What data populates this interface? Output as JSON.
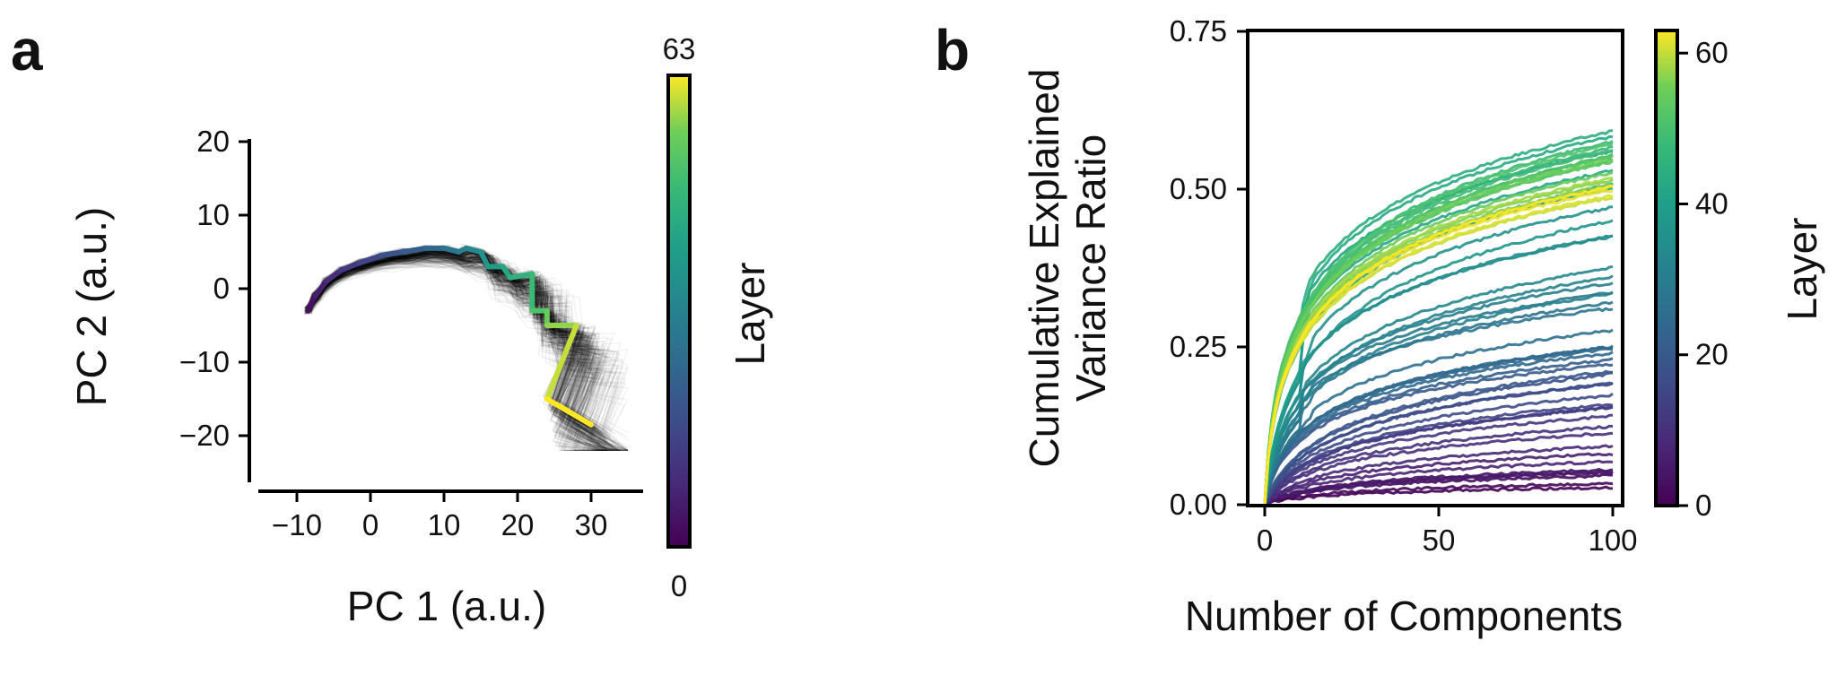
{
  "figure": {
    "panels": [
      {
        "label": "a"
      },
      {
        "label": "b"
      }
    ]
  },
  "chart_data": [
    {
      "panel": "a",
      "type": "line",
      "xlabel": "PC 1 (a.u.)",
      "ylabel": "PC 2 (a.u.)",
      "xlim": [
        -15,
        36
      ],
      "ylim": [
        -25.5,
        20
      ],
      "xticks": [
        -10,
        0,
        10,
        20,
        30
      ],
      "yticks": [
        -20,
        -10,
        0,
        10,
        20
      ],
      "grid": false,
      "background_trajectories": "many thin black semi-transparent trajectories",
      "highlighted_trajectory": {
        "x": [
          -8.5,
          -7.5,
          -6,
          -4,
          -1.5,
          1.5,
          4.5,
          7.5,
          10,
          12,
          13,
          15,
          16,
          18,
          19,
          22,
          22,
          24,
          24,
          28,
          24,
          30
        ],
        "y": [
          -3,
          -1,
          1,
          2.5,
          3.5,
          4.5,
          5,
          5.5,
          5.5,
          5,
          5.5,
          5,
          3,
          3,
          1.5,
          2,
          -3,
          -3,
          -5,
          -5,
          -15,
          -18.5
        ],
        "layer": [
          0,
          3,
          6,
          9,
          12,
          15,
          18,
          21,
          24,
          27,
          30,
          33,
          36,
          39,
          42,
          45,
          48,
          51,
          54,
          57,
          60,
          63
        ]
      },
      "colorbar": {
        "label": "Layer",
        "min_label": "0",
        "max_label": "63",
        "min": 0,
        "max": 63
      }
    },
    {
      "panel": "b",
      "type": "line",
      "xlabel": "Number of Components",
      "ylabel": "Cumulative Explained\nVariance Ratio",
      "xlim": [
        -5,
        103
      ],
      "ylim": [
        0,
        0.75
      ],
      "xticks": [
        0,
        50,
        100
      ],
      "yticks": [
        "0.00",
        "0.25",
        "0.50",
        "0.75"
      ],
      "grid": false,
      "series_description": "one cumulative curve per layer (0-63), x from 0 to 100 components",
      "series_final_values_by_layer": {
        "layers": [
          0,
          3,
          6,
          9,
          12,
          15,
          18,
          21,
          24,
          27,
          30,
          33,
          36,
          39,
          42,
          45,
          48,
          51,
          54,
          57,
          60,
          63
        ],
        "final_values": [
          0.03,
          0.05,
          0.07,
          0.1,
          0.14,
          0.18,
          0.2,
          0.23,
          0.25,
          0.27,
          0.32,
          0.36,
          0.42,
          0.47,
          0.52,
          0.55,
          0.57,
          0.56,
          0.54,
          0.52,
          0.5,
          0.49
        ]
      },
      "colorbar": {
        "label": "Layer",
        "ticks": [
          "0",
          "20",
          "40",
          "60"
        ],
        "min": 0,
        "max": 63
      }
    }
  ]
}
